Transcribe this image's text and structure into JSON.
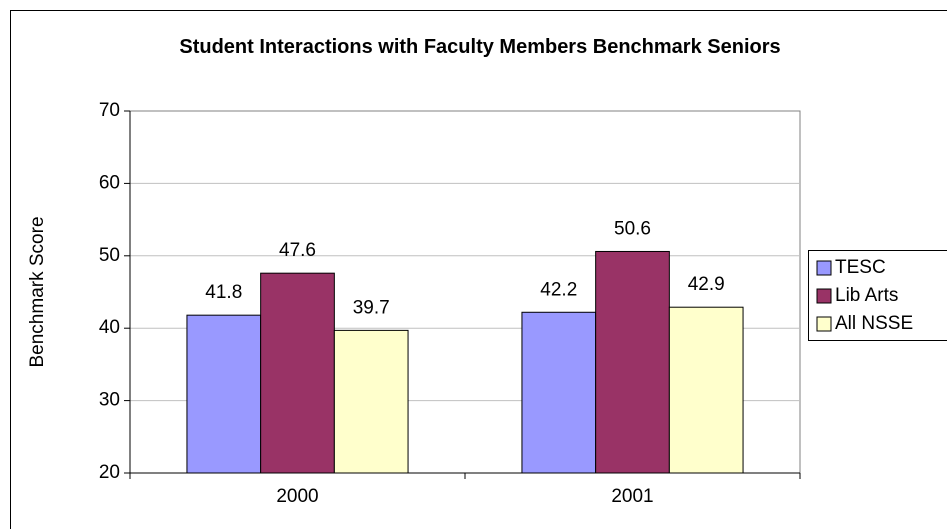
{
  "chart_data": {
    "type": "bar",
    "title": "Student Interactions with Faculty Members Benchmark Seniors",
    "y_label": "Benchmark Score",
    "categories": [
      "2000",
      "2001"
    ],
    "series": [
      {
        "name": "TESC",
        "color": "#9999ff",
        "values": [
          41.8,
          42.2
        ]
      },
      {
        "name": "Lib Arts",
        "color": "#993366",
        "values": [
          47.6,
          50.6
        ]
      },
      {
        "name": "All NSSE",
        "color": "#ffffcc",
        "values": [
          39.7,
          42.9
        ]
      }
    ],
    "ylim": [
      20,
      70
    ],
    "yticks": [
      20,
      30,
      40,
      50,
      60,
      70
    ],
    "grid": true,
    "legend": "right"
  }
}
